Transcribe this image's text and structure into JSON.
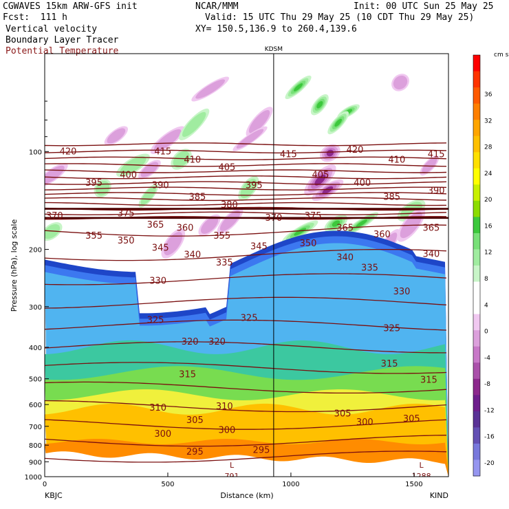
{
  "header": {
    "model": "CGWAVES 15km ARW-GFS init",
    "forecast": "Fcst:  111 h",
    "center": "NCAR/MMM",
    "init": "Init: 00 UTC Sun 25 May 25",
    "valid": "Valid: 15 UTC Thu 29 May 25 (10 CDT Thu 29 May 25)",
    "field1": "Vertical velocity",
    "field2": "Boundary Layer Tracer",
    "field3": "Potential Temperature",
    "xy": "XY= 150.5,136.9 to 260.4,139.6",
    "field3_color": "#8b1a1a"
  },
  "chart_data": {
    "type": "heatmap",
    "title": "",
    "xlabel": "Distance (km)",
    "ylabel": "Pressure (hPa), log scale",
    "xlim": [
      0,
      1640
    ],
    "ylim": [
      1000,
      50
    ],
    "x_ticks": [
      0,
      500,
      1000,
      1500
    ],
    "y_ticks": [
      100,
      200,
      300,
      400,
      500,
      600,
      700,
      800,
      900,
      1000
    ],
    "marker_label": "KDSM",
    "marker_x_km": 930,
    "left_station": "KBJC",
    "right_station": "KIND",
    "bottom_labels": [
      {
        "text": "L",
        "x_km": 760
      },
      {
        "text": "L",
        "x_km": 1530
      },
      {
        "text": "791",
        "x_km": 760
      },
      {
        "text": "1288",
        "x_km": 1530
      }
    ],
    "colorbar": {
      "unit": "cm s⁻¹",
      "labels": [
        "36",
        "32",
        "28",
        "24",
        "20",
        "16",
        "12",
        "8",
        "4",
        "0",
        "-4",
        "-8",
        "-12",
        "-16",
        "-20"
      ],
      "colors": [
        "#ff0000",
        "#ff3300",
        "#ff5a00",
        "#ff7f00",
        "#ffa500",
        "#ffc000",
        "#ffe000",
        "#ffff00",
        "#c8f000",
        "#8cdc00",
        "#3cc83c",
        "#78e078",
        "#a0eca0",
        "#c8f5c8",
        "#ffffff",
        "#ffffff",
        "#f0c8f0",
        "#dca0dc",
        "#c878c8",
        "#aa50aa",
        "#8c288c",
        "#6e1e8c",
        "#5a3296",
        "#6450b4",
        "#7878dc",
        "#9696f0"
      ]
    },
    "theta_labels": [
      {
        "v": "420",
        "x_km": 95,
        "p": 100
      },
      {
        "v": "415",
        "x_km": 480,
        "p": 100
      },
      {
        "v": "410",
        "x_km": 600,
        "p": 106
      },
      {
        "v": "405",
        "x_km": 740,
        "p": 112
      },
      {
        "v": "415",
        "x_km": 990,
        "p": 102
      },
      {
        "v": "420",
        "x_km": 1260,
        "p": 99
      },
      {
        "v": "410",
        "x_km": 1430,
        "p": 106
      },
      {
        "v": "415",
        "x_km": 1590,
        "p": 102
      },
      {
        "v": "395",
        "x_km": 200,
        "p": 125
      },
      {
        "v": "400",
        "x_km": 340,
        "p": 118
      },
      {
        "v": "390",
        "x_km": 470,
        "p": 127
      },
      {
        "v": "385",
        "x_km": 620,
        "p": 138
      },
      {
        "v": "395",
        "x_km": 850,
        "p": 127
      },
      {
        "v": "405",
        "x_km": 1120,
        "p": 118
      },
      {
        "v": "400",
        "x_km": 1290,
        "p": 125
      },
      {
        "v": "385",
        "x_km": 1410,
        "p": 138
      },
      {
        "v": "390",
        "x_km": 1590,
        "p": 132
      },
      {
        "v": "380",
        "x_km": 750,
        "p": 146
      },
      {
        "v": "375",
        "x_km": 330,
        "p": 155
      },
      {
        "v": "370",
        "x_km": 40,
        "p": 158
      },
      {
        "v": "370",
        "x_km": 930,
        "p": 160
      },
      {
        "v": "375",
        "x_km": 1090,
        "p": 158
      },
      {
        "v": "365",
        "x_km": 450,
        "p": 168
      },
      {
        "v": "360",
        "x_km": 570,
        "p": 172
      },
      {
        "v": "365",
        "x_km": 1220,
        "p": 172
      },
      {
        "v": "360",
        "x_km": 1370,
        "p": 180
      },
      {
        "v": "365",
        "x_km": 1570,
        "p": 172
      },
      {
        "v": "355",
        "x_km": 200,
        "p": 182
      },
      {
        "v": "350",
        "x_km": 330,
        "p": 188
      },
      {
        "v": "355",
        "x_km": 720,
        "p": 182
      },
      {
        "v": "345",
        "x_km": 470,
        "p": 198
      },
      {
        "v": "345",
        "x_km": 870,
        "p": 196
      },
      {
        "v": "350",
        "x_km": 1070,
        "p": 192
      },
      {
        "v": "340",
        "x_km": 600,
        "p": 208
      },
      {
        "v": "335",
        "x_km": 730,
        "p": 220
      },
      {
        "v": "340",
        "x_km": 1220,
        "p": 212
      },
      {
        "v": "335",
        "x_km": 1320,
        "p": 228
      },
      {
        "v": "340",
        "x_km": 1570,
        "p": 207
      },
      {
        "v": "330",
        "x_km": 460,
        "p": 250
      },
      {
        "v": "330",
        "x_km": 1450,
        "p": 270
      },
      {
        "v": "325",
        "x_km": 450,
        "p": 330
      },
      {
        "v": "325",
        "x_km": 830,
        "p": 325
      },
      {
        "v": "325",
        "x_km": 1410,
        "p": 350
      },
      {
        "v": "320",
        "x_km": 590,
        "p": 385
      },
      {
        "v": "320",
        "x_km": 700,
        "p": 385
      },
      {
        "v": "315",
        "x_km": 580,
        "p": 485
      },
      {
        "v": "315",
        "x_km": 1400,
        "p": 450
      },
      {
        "v": "315",
        "x_km": 1560,
        "p": 505
      },
      {
        "v": "310",
        "x_km": 460,
        "p": 615
      },
      {
        "v": "310",
        "x_km": 730,
        "p": 608
      },
      {
        "v": "305",
        "x_km": 610,
        "p": 670
      },
      {
        "v": "305",
        "x_km": 1210,
        "p": 640
      },
      {
        "v": "305",
        "x_km": 1490,
        "p": 665
      },
      {
        "v": "300",
        "x_km": 480,
        "p": 740
      },
      {
        "v": "300",
        "x_km": 740,
        "p": 720
      },
      {
        "v": "300",
        "x_km": 1300,
        "p": 680
      },
      {
        "v": "295",
        "x_km": 610,
        "p": 840
      },
      {
        "v": "295",
        "x_km": 880,
        "p": 830
      }
    ]
  }
}
